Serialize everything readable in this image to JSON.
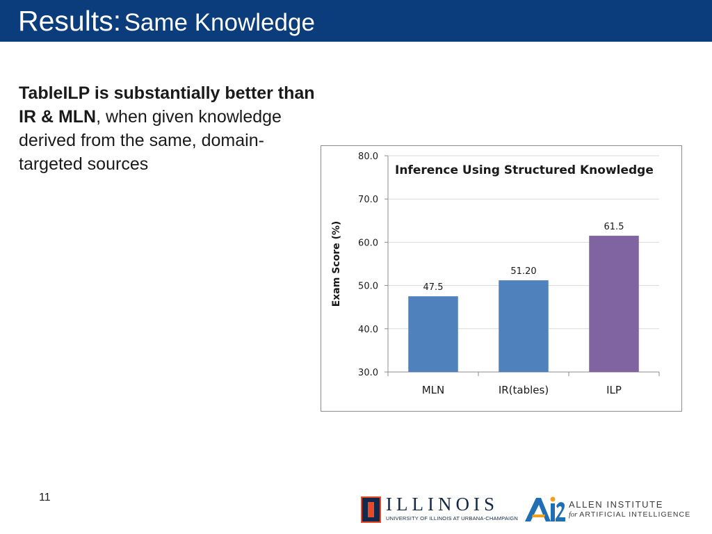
{
  "header": {
    "title_main": "Results:",
    "title_sub": "Same Knowledge",
    "background": "#0b3d7c"
  },
  "body": {
    "bold_text": "TableILP is substantially better than IR & MLN",
    "normal_text": ", when given knowledge derived from the same, domain-targeted sources"
  },
  "page_number": "11",
  "logos": {
    "illinois": {
      "word": "ILLINOIS",
      "subtitle": "UNIVERSITY OF ILLINOIS AT URBANA-CHAMPAIGN"
    },
    "ai2": {
      "mark": "AI2",
      "line1": "ALLEN INSTITUTE",
      "line2_for": "for",
      "line2": "ARTIFICIAL INTELLIGENCE"
    }
  },
  "chart_data": {
    "type": "bar",
    "title": "Inference Using Structured Knowledge",
    "xlabel": "",
    "ylabel": "Exam Score (%)",
    "categories": [
      "MLN",
      "IR(tables)",
      "ILP"
    ],
    "values": [
      47.5,
      51.2,
      61.5
    ],
    "value_labels": [
      "47.5",
      "51.20",
      "61.5"
    ],
    "bar_colors": [
      "#4f81bd",
      "#4f81bd",
      "#8064a2"
    ],
    "ylim": [
      30,
      80
    ],
    "yticks": [
      30,
      40,
      50,
      60,
      70,
      80
    ],
    "ytick_labels": [
      "30.0",
      "40.0",
      "50.0",
      "60.0",
      "70.0",
      "80.0"
    ],
    "grid": true,
    "legend": "none"
  }
}
